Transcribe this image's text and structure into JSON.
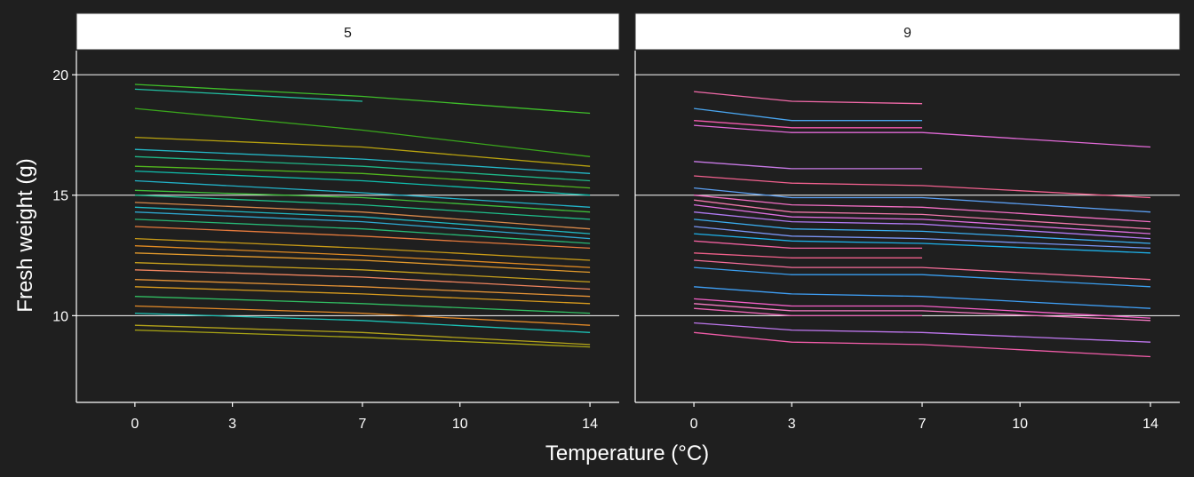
{
  "chart_data": {
    "type": "line",
    "xlabel": "Temperature (°C)",
    "ylabel": "Fresh weight (g)",
    "x_ticks": [
      0,
      3,
      7,
      10,
      14
    ],
    "y_ticks": [
      10,
      15,
      20
    ],
    "xlim": [
      -1.8,
      14.9
    ],
    "ylim": [
      6.4,
      21.0
    ],
    "grid": true,
    "legend": "none",
    "panels": [
      {
        "label": "5",
        "series": [
          {
            "x": [
              0,
              7,
              14
            ],
            "y": [
              19.6,
              19.1,
              18.4
            ],
            "color": "#3fbf2a"
          },
          {
            "x": [
              0,
              7
            ],
            "y": [
              19.4,
              18.9
            ],
            "color": "#22c0a3"
          },
          {
            "x": [
              0,
              7,
              14
            ],
            "y": [
              18.6,
              17.7,
              16.6
            ],
            "color": "#3aa71c"
          },
          {
            "x": [
              0,
              7,
              14
            ],
            "y": [
              17.4,
              17.0,
              16.2
            ],
            "color": "#b9a30f"
          },
          {
            "x": [
              0,
              7,
              14
            ],
            "y": [
              16.9,
              16.5,
              15.9
            ],
            "color": "#24b8c7"
          },
          {
            "x": [
              0,
              7,
              14
            ],
            "y": [
              16.6,
              16.2,
              15.6
            ],
            "color": "#1fb788"
          },
          {
            "x": [
              0,
              7,
              14
            ],
            "y": [
              16.2,
              15.9,
              15.3
            ],
            "color": "#52b71f"
          },
          {
            "x": [
              0,
              7,
              14
            ],
            "y": [
              16.0,
              15.6,
              15.0
            ],
            "color": "#10bfae"
          },
          {
            "x": [
              0,
              7,
              14
            ],
            "y": [
              15.6,
              15.1,
              14.5
            ],
            "color": "#22b3c9"
          },
          {
            "x": [
              0,
              7,
              14
            ],
            "y": [
              15.2,
              14.9,
              14.3
            ],
            "color": "#3fbf3a"
          },
          {
            "x": [
              0,
              7,
              14
            ],
            "y": [
              15.0,
              14.6,
              14.0
            ],
            "color": "#1fc08c"
          },
          {
            "x": [
              0,
              7,
              14
            ],
            "y": [
              14.7,
              14.3,
              13.6
            ],
            "color": "#d6884a"
          },
          {
            "x": [
              0,
              7,
              14
            ],
            "y": [
              14.5,
              14.1,
              13.4
            ],
            "color": "#20b9c4"
          },
          {
            "x": [
              0,
              7,
              14
            ],
            "y": [
              14.3,
              13.9,
              13.2
            ],
            "color": "#2fa8d0"
          },
          {
            "x": [
              0,
              7,
              14
            ],
            "y": [
              14.0,
              13.6,
              13.0
            ],
            "color": "#27b876"
          },
          {
            "x": [
              0,
              7,
              14
            ],
            "y": [
              13.7,
              13.3,
              12.8
            ],
            "color": "#e57a3c"
          },
          {
            "x": [
              0,
              7,
              14
            ],
            "y": [
              13.2,
              12.8,
              12.3
            ],
            "color": "#c99b17"
          },
          {
            "x": [
              0,
              7,
              14
            ],
            "y": [
              12.9,
              12.5,
              12.0
            ],
            "color": "#e08a22"
          },
          {
            "x": [
              0,
              7,
              14
            ],
            "y": [
              12.6,
              12.3,
              11.8
            ],
            "color": "#e39a2c"
          },
          {
            "x": [
              0,
              7,
              14
            ],
            "y": [
              12.2,
              11.9,
              11.4
            ],
            "color": "#c8a11d"
          },
          {
            "x": [
              0,
              7,
              14
            ],
            "y": [
              11.9,
              11.6,
              11.1
            ],
            "color": "#f0845e"
          },
          {
            "x": [
              0,
              7,
              14
            ],
            "y": [
              11.5,
              11.2,
              10.8
            ],
            "color": "#e49236"
          },
          {
            "x": [
              0,
              7,
              14
            ],
            "y": [
              11.2,
              10.9,
              10.5
            ],
            "color": "#d89b1e"
          },
          {
            "x": [
              0,
              7,
              14
            ],
            "y": [
              10.8,
              10.5,
              10.1
            ],
            "color": "#31bd62"
          },
          {
            "x": [
              0,
              7,
              14
            ],
            "y": [
              10.4,
              10.1,
              9.6
            ],
            "color": "#e58b28"
          },
          {
            "x": [
              0,
              7,
              14
            ],
            "y": [
              10.1,
              9.8,
              9.3
            ],
            "color": "#1cc2b6"
          },
          {
            "x": [
              0,
              7,
              14
            ],
            "y": [
              9.6,
              9.3,
              8.8
            ],
            "color": "#b3a31a"
          },
          {
            "x": [
              0,
              7,
              14
            ],
            "y": [
              9.4,
              9.1,
              8.7
            ],
            "color": "#a9a514"
          }
        ]
      },
      {
        "label": "9",
        "series": [
          {
            "x": [
              0,
              3,
              7
            ],
            "y": [
              19.3,
              18.9,
              18.8
            ],
            "color": "#f26aa9"
          },
          {
            "x": [
              0,
              3,
              7
            ],
            "y": [
              18.6,
              18.1,
              18.1
            ],
            "color": "#4aa6f0"
          },
          {
            "x": [
              0,
              3,
              7
            ],
            "y": [
              18.1,
              17.8,
              17.8
            ],
            "color": "#f55bb0"
          },
          {
            "x": [
              0,
              3,
              7,
              14
            ],
            "y": [
              17.9,
              17.6,
              17.6,
              17.0
            ],
            "color": "#e26ad8"
          },
          {
            "x": [
              0,
              3,
              7
            ],
            "y": [
              16.4,
              16.1,
              16.1
            ],
            "color": "#c87ae6"
          },
          {
            "x": [
              0,
              3,
              7,
              14
            ],
            "y": [
              15.8,
              15.5,
              15.4,
              14.9
            ],
            "color": "#f2618f"
          },
          {
            "x": [
              0,
              3,
              7,
              14
            ],
            "y": [
              15.3,
              14.9,
              14.9,
              14.3
            ],
            "color": "#5b9ff2"
          },
          {
            "x": [
              0,
              3,
              7,
              14
            ],
            "y": [
              15.0,
              14.6,
              14.5,
              13.9
            ],
            "color": "#f36fc4"
          },
          {
            "x": [
              0,
              3,
              7,
              14
            ],
            "y": [
              14.8,
              14.3,
              14.2,
              13.6
            ],
            "color": "#ee77aa"
          },
          {
            "x": [
              0,
              3,
              7,
              14
            ],
            "y": [
              14.6,
              14.1,
              14.0,
              13.4
            ],
            "color": "#de6fe0"
          },
          {
            "x": [
              0,
              3,
              7,
              14
            ],
            "y": [
              14.3,
              13.9,
              13.8,
              13.2
            ],
            "color": "#b07af2"
          },
          {
            "x": [
              0,
              3,
              7,
              14
            ],
            "y": [
              14.0,
              13.6,
              13.5,
              13.0
            ],
            "color": "#3aaef0"
          },
          {
            "x": [
              0,
              3,
              7,
              14
            ],
            "y": [
              13.7,
              13.3,
              13.2,
              12.8
            ],
            "color": "#7a95f5"
          },
          {
            "x": [
              0,
              3,
              7,
              14
            ],
            "y": [
              13.4,
              13.1,
              13.0,
              12.6
            ],
            "color": "#1eb0e8"
          },
          {
            "x": [
              0,
              3,
              7
            ],
            "y": [
              13.1,
              12.8,
              12.8
            ],
            "color": "#f0609e"
          },
          {
            "x": [
              0,
              3,
              7
            ],
            "y": [
              12.6,
              12.4,
              12.4
            ],
            "color": "#f0608a"
          },
          {
            "x": [
              0,
              3,
              7,
              14
            ],
            "y": [
              12.3,
              12.0,
              12.0,
              11.5
            ],
            "color": "#f56d9a"
          },
          {
            "x": [
              0,
              3,
              7,
              14
            ],
            "y": [
              12.0,
              11.7,
              11.7,
              11.2
            ],
            "color": "#3a9ff0"
          },
          {
            "x": [
              0,
              3,
              7,
              14
            ],
            "y": [
              11.2,
              10.9,
              10.8,
              10.3
            ],
            "color": "#3f9ff5"
          },
          {
            "x": [
              0,
              3,
              7,
              14
            ],
            "y": [
              10.7,
              10.4,
              10.4,
              9.9
            ],
            "color": "#f560c8"
          },
          {
            "x": [
              0,
              3,
              7,
              14
            ],
            "y": [
              10.5,
              10.2,
              10.2,
              9.8
            ],
            "color": "#f47ac2"
          },
          {
            "x": [
              0,
              3,
              7
            ],
            "y": [
              10.3,
              10.0,
              10.0
            ],
            "color": "#ea64b4"
          },
          {
            "x": [
              0,
              3,
              7,
              14
            ],
            "y": [
              9.7,
              9.4,
              9.3,
              8.9
            ],
            "color": "#c078f0"
          },
          {
            "x": [
              0,
              3,
              7,
              14
            ],
            "y": [
              9.3,
              8.9,
              8.8,
              8.3
            ],
            "color": "#f05ca8"
          }
        ]
      }
    ]
  }
}
